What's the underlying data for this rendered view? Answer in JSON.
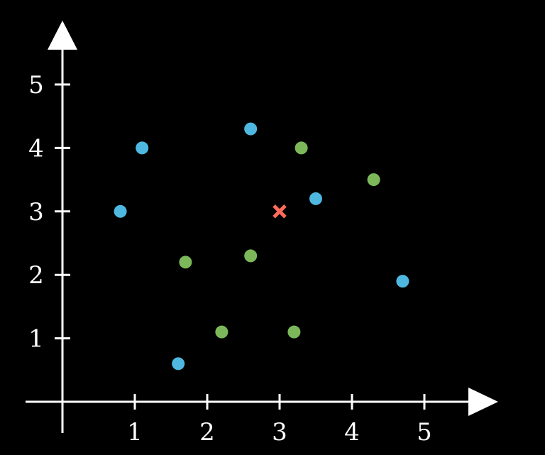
{
  "chart_data": {
    "type": "scatter",
    "title": "",
    "xlabel": "",
    "ylabel": "",
    "xlim": [
      -0.5,
      6
    ],
    "ylim": [
      -0.5,
      6
    ],
    "x_ticks": [
      "1",
      "2",
      "3",
      "4",
      "5"
    ],
    "y_ticks": [
      "1",
      "2",
      "3",
      "4",
      "5"
    ],
    "grid": false,
    "legend": "none",
    "colors": {
      "background": "#000000",
      "axes": "#ffffff",
      "blue": "#4fb8e0",
      "green": "#7cb85a",
      "query": "#ff6b5a"
    },
    "series": [
      {
        "color": "blue",
        "marker": "circle",
        "points": [
          {
            "x": 0.8,
            "y": 3.0
          },
          {
            "x": 1.1,
            "y": 4.0
          },
          {
            "x": 1.6,
            "y": 0.6
          },
          {
            "x": 2.6,
            "y": 4.3
          },
          {
            "x": 3.5,
            "y": 3.2
          },
          {
            "x": 4.7,
            "y": 1.9
          }
        ]
      },
      {
        "color": "green",
        "marker": "circle",
        "points": [
          {
            "x": 1.7,
            "y": 2.2
          },
          {
            "x": 2.2,
            "y": 1.1
          },
          {
            "x": 2.6,
            "y": 2.3
          },
          {
            "x": 3.2,
            "y": 1.1
          },
          {
            "x": 3.3,
            "y": 4.0
          },
          {
            "x": 4.3,
            "y": 3.5
          }
        ]
      },
      {
        "color": "query",
        "marker": "cross",
        "points": [
          {
            "x": 3.0,
            "y": 3.0
          }
        ]
      }
    ]
  }
}
